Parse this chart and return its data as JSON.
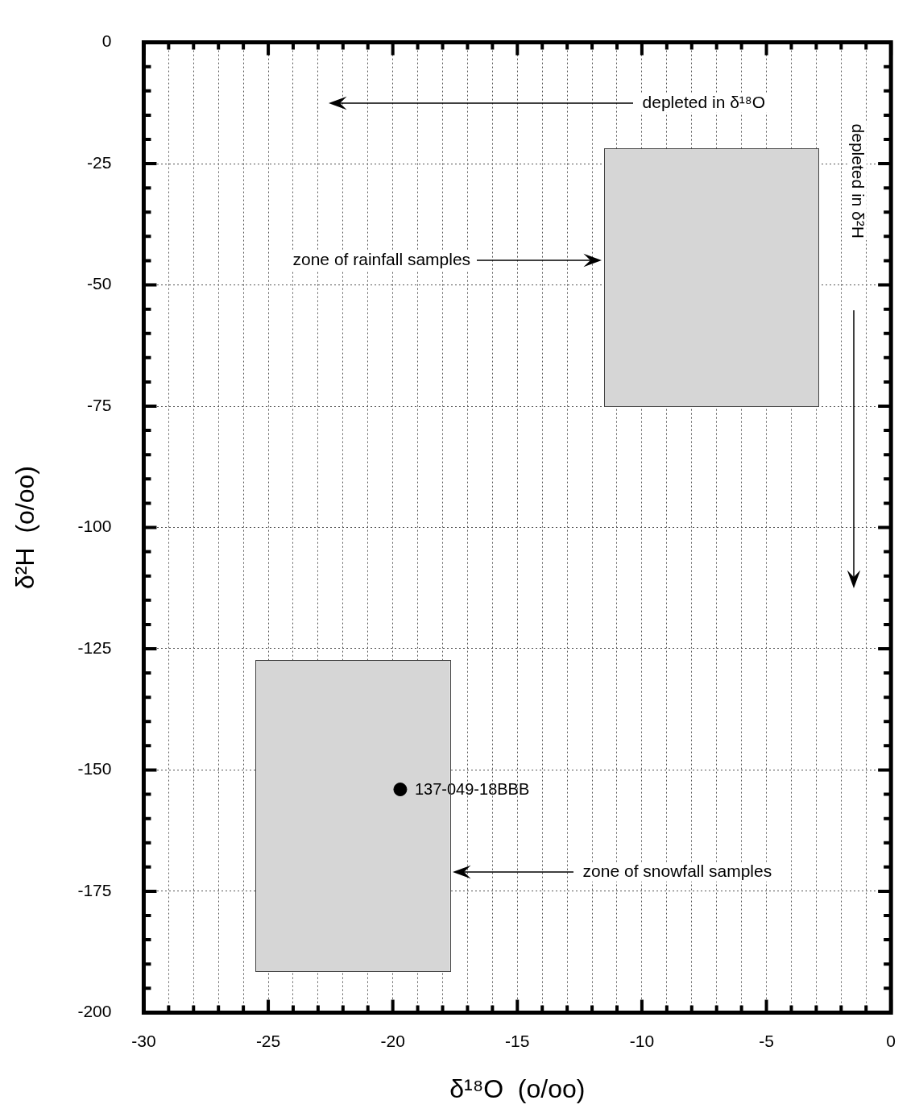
{
  "chart_data": {
    "type": "scatter",
    "xlabel": "δ¹⁸O  (o/oo)",
    "ylabel": "δ²H  (o/oo)",
    "xlim": [
      -30,
      0
    ],
    "ylim": [
      -200,
      0
    ],
    "xticks": [
      -30,
      {
        "value": -29,
        "label": null
      },
      {
        "value": -28,
        "label": null
      },
      {
        "value": -27,
        "label": null
      },
      {
        "value": -26,
        "label": null
      },
      -25,
      {
        "value": -24,
        "label": null
      },
      {
        "value": -23,
        "label": null
      },
      {
        "value": -22,
        "label": null
      },
      {
        "value": -21,
        "label": null
      },
      -20,
      {
        "value": -19,
        "label": null
      },
      {
        "value": -18,
        "label": null
      },
      {
        "value": -17,
        "label": null
      },
      {
        "value": -16,
        "label": null
      },
      -15,
      {
        "value": -14,
        "label": null
      },
      {
        "value": -13,
        "label": null
      },
      {
        "value": -12,
        "label": null
      },
      {
        "value": -11,
        "label": null
      },
      -10,
      {
        "value": -9,
        "label": null
      },
      {
        "value": -8,
        "label": null
      },
      {
        "value": -7,
        "label": null
      },
      {
        "value": -6,
        "label": null
      },
      -5,
      {
        "value": -4,
        "label": null
      },
      {
        "value": -3,
        "label": null
      },
      {
        "value": -2,
        "label": null
      },
      {
        "value": -1,
        "label": null
      },
      0
    ],
    "yticks": [
      -200,
      {
        "value": -195,
        "label": null
      },
      {
        "value": -190,
        "label": null
      },
      {
        "value": -185,
        "label": null
      },
      {
        "value": -180,
        "label": null
      },
      -175,
      {
        "value": -170,
        "label": null
      },
      {
        "value": -165,
        "label": null
      },
      {
        "value": -160,
        "label": null
      },
      {
        "value": -155,
        "label": null
      },
      -150,
      {
        "value": -145,
        "label": null
      },
      {
        "value": -140,
        "label": null
      },
      {
        "value": -135,
        "label": null
      },
      {
        "value": -130,
        "label": null
      },
      -125,
      {
        "value": -120,
        "label": null
      },
      {
        "value": -115,
        "label": null
      },
      {
        "value": -110,
        "label": null
      },
      {
        "value": -105,
        "label": null
      },
      -100,
      {
        "value": -95,
        "label": null
      },
      {
        "value": -90,
        "label": null
      },
      {
        "value": -85,
        "label": null
      },
      {
        "value": -80,
        "label": null
      },
      -75,
      {
        "value": -70,
        "label": null
      },
      {
        "value": -65,
        "label": null
      },
      {
        "value": -60,
        "label": null
      },
      {
        "value": -55,
        "label": null
      },
      -50,
      {
        "value": -45,
        "label": null
      },
      {
        "value": -40,
        "label": null
      },
      {
        "value": -35,
        "label": null
      },
      {
        "value": -30,
        "label": null
      },
      -25,
      {
        "value": -20,
        "label": null
      },
      {
        "value": -15,
        "label": null
      },
      {
        "value": -10,
        "label": null
      },
      {
        "value": -5,
        "label": null
      },
      0
    ],
    "grid": true,
    "series": [
      {
        "type": "line",
        "marker": "none",
        "x": [
          -11.5,
          -2.9
        ],
        "values": [
          null,
          null
        ],
        "lower": [
          -75,
          -75
        ],
        "upper": [
          -22,
          -22
        ],
        "color": "#d6d6d6"
      },
      {
        "type": "line",
        "marker": "none",
        "x": [
          -25.5,
          -17.7
        ],
        "values": [
          null,
          null
        ],
        "lower": [
          -191.5,
          -191.5
        ],
        "upper": [
          -127.5,
          -127.5
        ],
        "color": "#d6d6d6"
      },
      {
        "marker": "circle",
        "name": "137-049-18BBB",
        "x": [
          -19.7
        ],
        "values": [
          -154
        ],
        "color": "#000000"
      }
    ],
    "annotations": [
      "depleted in δ¹⁸O",
      "depleted in δ²H",
      "zone of rainfall samples",
      "zone of snowfall samples"
    ]
  }
}
